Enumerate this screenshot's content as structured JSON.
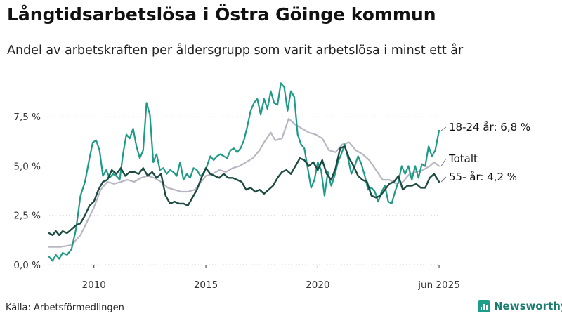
{
  "colors": {
    "young": "#1f9a86",
    "total": "#b9b6c4",
    "old": "#1d4a42",
    "grid": "#d0d0d0",
    "axis": "#333333",
    "brand": "#1e9e8a"
  },
  "source": "Källa: Arbetsförmedlingen",
  "brand": {
    "name": "Newsworthy",
    "icon": "bar-chart-icon"
  },
  "chart_data": {
    "type": "line",
    "title": "Långtidsarbetslösa i Östra Göinge kommun",
    "subtitle": "Andel av arbetskraften per åldersgrupp som varit arbetslösa i minst ett år",
    "xlim": [
      2008.0,
      2025.45
    ],
    "ylim": [
      0,
      9.5
    ],
    "yticks": [
      0,
      2.5,
      5,
      7.5
    ],
    "ytick_labels": [
      "0,0 %",
      "2,5 %",
      "5,0 %",
      "7,5 %"
    ],
    "xticks": [
      2010,
      2015,
      2020,
      2025.42
    ],
    "xtick_labels": [
      "2010",
      "2015",
      "2020",
      "jun 2025"
    ],
    "grid": true,
    "series": [
      {
        "name": "Totalt",
        "label": "Totalt",
        "color_key": "total",
        "x": [
          2008.0,
          2008.5,
          2009.0,
          2009.4,
          2009.7,
          2010.0,
          2010.3,
          2010.6,
          2010.9,
          2011.2,
          2011.5,
          2011.8,
          2012.1,
          2012.4,
          2012.7,
          2013.0,
          2013.3,
          2013.6,
          2013.9,
          2014.2,
          2014.5,
          2014.8,
          2015.0,
          2015.3,
          2015.6,
          2015.9,
          2016.2,
          2016.5,
          2016.8,
          2017.1,
          2017.4,
          2017.6,
          2017.9,
          2018.1,
          2018.4,
          2018.7,
          2019.0,
          2019.3,
          2019.6,
          2019.9,
          2020.2,
          2020.5,
          2020.8,
          2021.1,
          2021.4,
          2021.7,
          2022.0,
          2022.3,
          2022.6,
          2022.9,
          2023.2,
          2023.5,
          2023.8,
          2024.1,
          2024.4,
          2024.7,
          2025.0,
          2025.2,
          2025.42
        ],
        "values": [
          0.9,
          0.9,
          1.0,
          1.5,
          2.2,
          2.9,
          3.8,
          4.2,
          4.1,
          4.2,
          4.3,
          4.2,
          4.4,
          4.5,
          4.4,
          4.2,
          3.9,
          3.8,
          3.7,
          3.7,
          3.8,
          4.2,
          4.5,
          4.6,
          4.8,
          4.7,
          4.9,
          5.0,
          5.2,
          5.4,
          5.8,
          6.2,
          6.7,
          6.3,
          6.4,
          7.4,
          7.1,
          6.9,
          6.7,
          6.6,
          6.4,
          5.8,
          5.7,
          6.1,
          6.2,
          5.8,
          5.6,
          5.3,
          4.8,
          4.3,
          4.3,
          4.1,
          4.2,
          4.6,
          4.7,
          4.8,
          5.0,
          5.2,
          5.0
        ],
        "end_value": 5.0
      },
      {
        "name": "18-24 år",
        "label": "18-24 år: 6,8 %",
        "color_key": "young",
        "x": [
          2008.0,
          2008.15,
          2008.3,
          2008.45,
          2008.6,
          2008.8,
          2009.0,
          2009.2,
          2009.4,
          2009.6,
          2009.8,
          2009.95,
          2010.1,
          2010.25,
          2010.4,
          2010.55,
          2010.7,
          2010.85,
          2011.0,
          2011.15,
          2011.3,
          2011.45,
          2011.6,
          2011.75,
          2011.9,
          2012.05,
          2012.2,
          2012.35,
          2012.5,
          2012.65,
          2012.8,
          2012.95,
          2013.1,
          2013.25,
          2013.4,
          2013.55,
          2013.7,
          2013.85,
          2014.0,
          2014.15,
          2014.3,
          2014.45,
          2014.6,
          2014.75,
          2014.9,
          2015.05,
          2015.2,
          2015.35,
          2015.5,
          2015.65,
          2015.8,
          2015.95,
          2016.1,
          2016.25,
          2016.4,
          2016.55,
          2016.7,
          2016.85,
          2017.0,
          2017.15,
          2017.3,
          2017.45,
          2017.6,
          2017.75,
          2017.9,
          2018.05,
          2018.2,
          2018.35,
          2018.5,
          2018.65,
          2018.8,
          2018.95,
          2019.1,
          2019.25,
          2019.4,
          2019.55,
          2019.7,
          2019.85,
          2020.0,
          2020.15,
          2020.3,
          2020.45,
          2020.6,
          2020.75,
          2020.9,
          2021.05,
          2021.2,
          2021.35,
          2021.5,
          2021.65,
          2021.8,
          2021.95,
          2022.1,
          2022.25,
          2022.4,
          2022.55,
          2022.7,
          2022.85,
          2023.0,
          2023.15,
          2023.3,
          2023.45,
          2023.6,
          2023.75,
          2023.9,
          2024.05,
          2024.2,
          2024.35,
          2024.5,
          2024.65,
          2024.8,
          2024.95,
          2025.1,
          2025.25,
          2025.42
        ],
        "values": [
          0.4,
          0.2,
          0.5,
          0.3,
          0.6,
          0.5,
          0.8,
          1.8,
          3.5,
          4.2,
          5.4,
          6.2,
          6.3,
          5.8,
          4.5,
          4.8,
          4.4,
          4.6,
          4.5,
          4.3,
          5.6,
          6.6,
          6.4,
          6.9,
          6.0,
          5.4,
          5.8,
          8.2,
          7.6,
          5.2,
          5.6,
          4.8,
          4.9,
          4.6,
          4.8,
          4.7,
          4.5,
          5.2,
          4.3,
          4.6,
          4.4,
          4.9,
          4.8,
          4.5,
          4.6,
          5.0,
          5.5,
          5.3,
          5.5,
          5.6,
          5.5,
          5.4,
          5.8,
          5.9,
          5.7,
          5.9,
          6.3,
          7.0,
          7.8,
          8.2,
          8.4,
          7.6,
          8.4,
          7.9,
          8.8,
          8.2,
          8.1,
          9.2,
          9.0,
          7.8,
          8.8,
          8.5,
          6.6,
          6.1,
          5.9,
          4.9,
          3.9,
          4.3,
          5.2,
          4.8,
          3.5,
          4.7,
          4.0,
          4.5,
          5.2,
          5.6,
          6.1,
          5.4,
          4.6,
          5.0,
          5.5,
          5.1,
          4.5,
          3.8,
          3.9,
          3.7,
          3.2,
          3.7,
          4.0,
          3.2,
          3.1,
          3.7,
          4.2,
          5.0,
          4.6,
          5.0,
          4.3,
          5.0,
          4.4,
          5.1,
          5.0,
          6.0,
          5.5,
          5.8,
          6.8
        ],
        "end_value": 6.8
      },
      {
        "name": "55- år",
        "label": "55- år: 4,2 %",
        "color_key": "old",
        "x": [
          2008.0,
          2008.15,
          2008.3,
          2008.45,
          2008.6,
          2008.8,
          2009.0,
          2009.2,
          2009.4,
          2009.6,
          2009.8,
          2010.0,
          2010.2,
          2010.4,
          2010.6,
          2010.8,
          2011.0,
          2011.2,
          2011.4,
          2011.6,
          2011.8,
          2012.0,
          2012.2,
          2012.4,
          2012.6,
          2012.8,
          2013.0,
          2013.2,
          2013.4,
          2013.6,
          2013.8,
          2014.0,
          2014.2,
          2014.4,
          2014.6,
          2014.8,
          2015.0,
          2015.2,
          2015.4,
          2015.6,
          2015.8,
          2016.0,
          2016.2,
          2016.4,
          2016.6,
          2016.8,
          2017.0,
          2017.2,
          2017.4,
          2017.6,
          2017.8,
          2018.0,
          2018.2,
          2018.4,
          2018.6,
          2018.8,
          2019.0,
          2019.2,
          2019.4,
          2019.6,
          2019.8,
          2020.0,
          2020.2,
          2020.4,
          2020.6,
          2020.8,
          2021.0,
          2021.2,
          2021.4,
          2021.6,
          2021.8,
          2022.0,
          2022.2,
          2022.4,
          2022.6,
          2022.8,
          2023.0,
          2023.2,
          2023.4,
          2023.6,
          2023.8,
          2024.0,
          2024.2,
          2024.4,
          2024.6,
          2024.8,
          2025.0,
          2025.2,
          2025.42
        ],
        "values": [
          1.6,
          1.5,
          1.7,
          1.5,
          1.7,
          1.6,
          1.8,
          2.0,
          2.1,
          2.5,
          3.0,
          3.2,
          3.8,
          4.2,
          4.3,
          4.8,
          4.6,
          4.9,
          4.5,
          4.7,
          4.7,
          4.6,
          4.9,
          4.5,
          4.7,
          4.4,
          4.6,
          3.5,
          3.1,
          3.2,
          3.1,
          3.1,
          3.0,
          3.4,
          3.8,
          4.4,
          4.9,
          4.6,
          4.5,
          4.4,
          4.6,
          4.4,
          4.4,
          4.3,
          4.2,
          3.8,
          3.9,
          3.7,
          3.8,
          3.6,
          3.8,
          4.0,
          4.4,
          4.7,
          4.8,
          4.6,
          5.0,
          5.4,
          5.3,
          5.0,
          5.2,
          4.8,
          5.3,
          4.6,
          4.3,
          4.9,
          5.9,
          6.0,
          5.4,
          5.0,
          4.5,
          4.3,
          4.2,
          3.5,
          3.4,
          3.5,
          3.8,
          4.1,
          4.2,
          4.5,
          3.8,
          4.0,
          4.0,
          4.1,
          3.9,
          3.9,
          4.4,
          4.6,
          4.2
        ],
        "end_value": 4.2
      }
    ]
  }
}
